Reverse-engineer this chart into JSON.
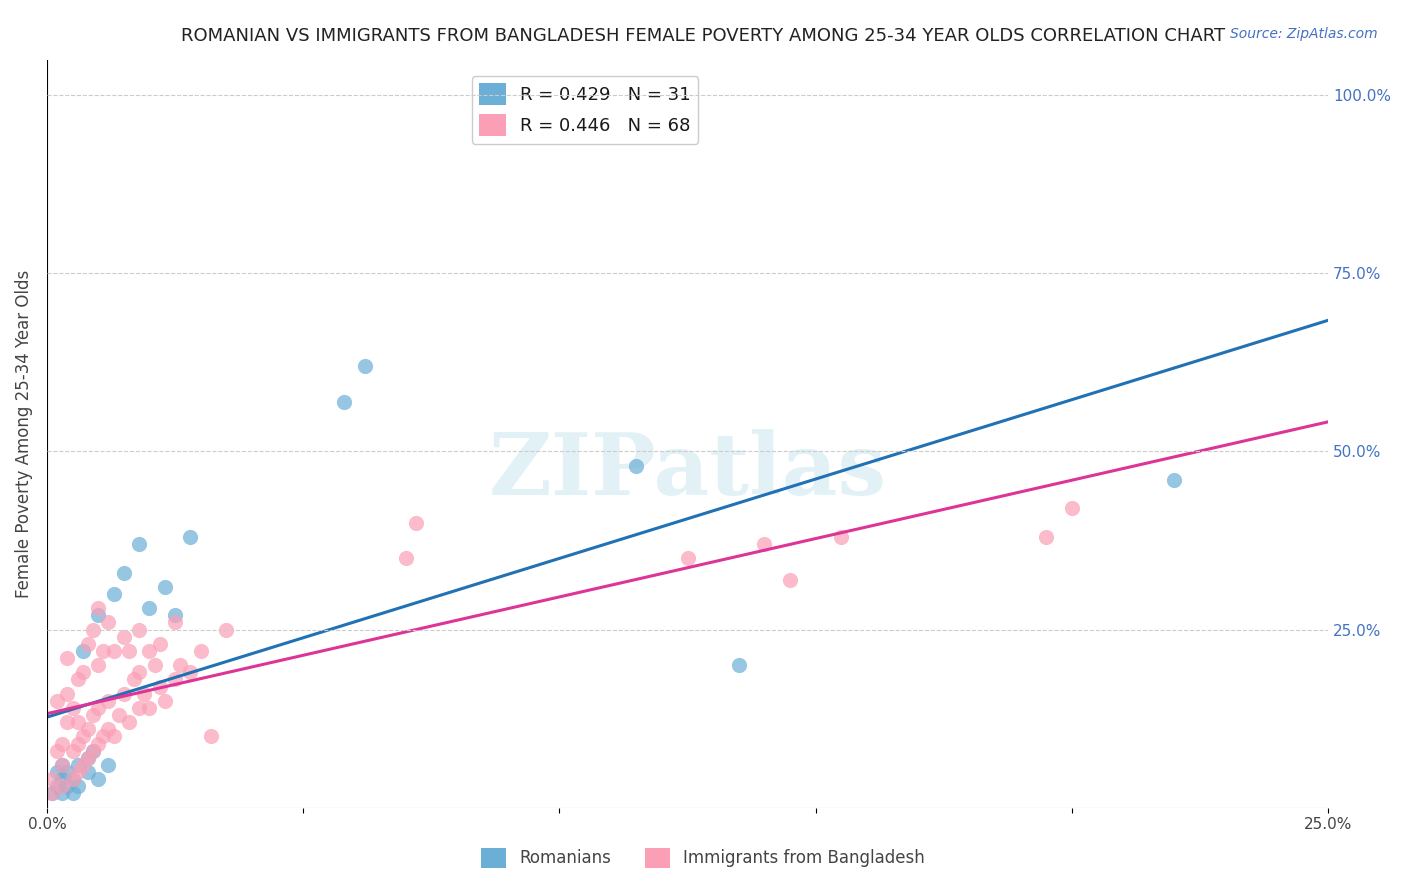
{
  "title": "ROMANIAN VS IMMIGRANTS FROM BANGLADESH FEMALE POVERTY AMONG 25-34 YEAR OLDS CORRELATION CHART",
  "source": "Source: ZipAtlas.com",
  "xlabel_bottom": "",
  "ylabel": "Female Poverty Among 25-34 Year Olds",
  "xlim": [
    0.0,
    0.25
  ],
  "ylim": [
    0.0,
    1.05
  ],
  "x_ticks": [
    0.0,
    0.05,
    0.1,
    0.15,
    0.2,
    0.25
  ],
  "x_tick_labels": [
    "0.0%",
    "",
    "",
    "",
    "",
    "25.0%"
  ],
  "y_ticks_right": [
    0.0,
    0.25,
    0.5,
    0.75,
    1.0
  ],
  "y_tick_labels_right": [
    "",
    "25.0%",
    "50.0%",
    "75.0%",
    "100.0%"
  ],
  "legend_r1": "R = 0.429   N = 31",
  "legend_r2": "R = 0.446   N = 68",
  "blue_color": "#6baed6",
  "pink_color": "#fa9fb5",
  "blue_line_color": "#2171b5",
  "pink_line_color": "#dd3497",
  "watermark": "ZIPatlas",
  "background_color": "#ffffff",
  "grid_color": "#cccccc",
  "romani_x": [
    0.001,
    0.002,
    0.002,
    0.003,
    0.003,
    0.003,
    0.004,
    0.004,
    0.005,
    0.005,
    0.006,
    0.006,
    0.007,
    0.008,
    0.008,
    0.009,
    0.01,
    0.01,
    0.012,
    0.013,
    0.015,
    0.018,
    0.02,
    0.023,
    0.025,
    0.028,
    0.058,
    0.062,
    0.115,
    0.135,
    0.22
  ],
  "romani_y": [
    0.02,
    0.03,
    0.05,
    0.02,
    0.04,
    0.06,
    0.03,
    0.05,
    0.02,
    0.04,
    0.03,
    0.06,
    0.22,
    0.05,
    0.07,
    0.08,
    0.04,
    0.27,
    0.06,
    0.3,
    0.33,
    0.37,
    0.28,
    0.31,
    0.27,
    0.38,
    0.57,
    0.62,
    0.48,
    0.2,
    0.46
  ],
  "bangladesh_x": [
    0.001,
    0.001,
    0.002,
    0.002,
    0.003,
    0.003,
    0.003,
    0.004,
    0.004,
    0.004,
    0.005,
    0.005,
    0.005,
    0.006,
    0.006,
    0.006,
    0.006,
    0.007,
    0.007,
    0.007,
    0.008,
    0.008,
    0.008,
    0.009,
    0.009,
    0.009,
    0.01,
    0.01,
    0.01,
    0.01,
    0.011,
    0.011,
    0.012,
    0.012,
    0.012,
    0.013,
    0.013,
    0.014,
    0.015,
    0.015,
    0.016,
    0.016,
    0.017,
    0.018,
    0.018,
    0.018,
    0.019,
    0.02,
    0.02,
    0.021,
    0.022,
    0.022,
    0.023,
    0.025,
    0.025,
    0.026,
    0.028,
    0.03,
    0.032,
    0.035,
    0.07,
    0.072,
    0.125,
    0.14,
    0.145,
    0.155,
    0.195,
    0.2
  ],
  "bangladesh_y": [
    0.02,
    0.04,
    0.08,
    0.15,
    0.03,
    0.06,
    0.09,
    0.12,
    0.16,
    0.21,
    0.04,
    0.08,
    0.14,
    0.05,
    0.09,
    0.12,
    0.18,
    0.06,
    0.1,
    0.19,
    0.07,
    0.11,
    0.23,
    0.08,
    0.13,
    0.25,
    0.09,
    0.14,
    0.2,
    0.28,
    0.1,
    0.22,
    0.11,
    0.15,
    0.26,
    0.1,
    0.22,
    0.13,
    0.16,
    0.24,
    0.12,
    0.22,
    0.18,
    0.14,
    0.19,
    0.25,
    0.16,
    0.14,
    0.22,
    0.2,
    0.17,
    0.23,
    0.15,
    0.18,
    0.26,
    0.2,
    0.19,
    0.22,
    0.1,
    0.25,
    0.35,
    0.4,
    0.35,
    0.37,
    0.32,
    0.38,
    0.38,
    0.42
  ]
}
